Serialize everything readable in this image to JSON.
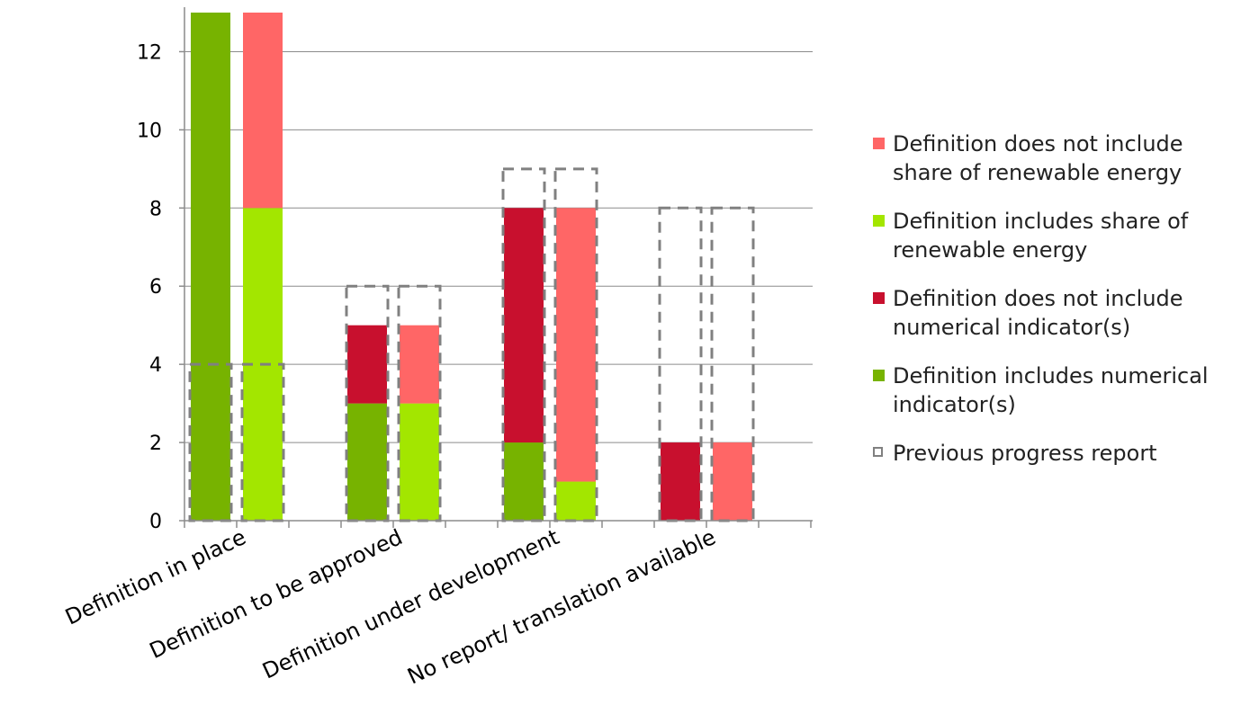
{
  "chart_data": {
    "type": "bar",
    "stacked": true,
    "categories": [
      "Definition in place",
      "Definition to be approved",
      "Definition under development",
      "No report/ translation available"
    ],
    "ylim": [
      0,
      13
    ],
    "yticks": [
      0,
      2,
      4,
      6,
      8,
      10,
      12
    ],
    "grid": true,
    "legend_position": "right",
    "groups": [
      {
        "name": "numerical indicator",
        "series": [
          {
            "name": "Definition includes numerical indicator(s)",
            "color": "#77b300",
            "values": [
              13,
              3,
              2,
              0
            ]
          },
          {
            "name": "Definition does not include numerical indicator(s)",
            "color": "#c8102e",
            "values": [
              0,
              2,
              6,
              2
            ]
          }
        ]
      },
      {
        "name": "share of renewable energy",
        "series": [
          {
            "name": "Definition includes share of renewable energy",
            "color": "#a3e600",
            "values": [
              8,
              3,
              1,
              0
            ]
          },
          {
            "name": "Definition does not include share of renewable energy",
            "color": "#ff6666",
            "values": [
              5,
              2,
              7,
              2
            ]
          }
        ]
      }
    ],
    "previous_progress_report": {
      "name": "Previous progress report",
      "style": "dashed-outline",
      "color": "#808080",
      "values": [
        4,
        6,
        9,
        8
      ]
    }
  },
  "legend": [
    {
      "label": "Definition does not include share of renewable energy",
      "color": "#ff6666",
      "style": "solid"
    },
    {
      "label": "Definition includes share of renewable energy",
      "color": "#a3e600",
      "style": "solid"
    },
    {
      "label": "Definition does not include numerical indicator(s)",
      "color": "#c8102e",
      "style": "solid"
    },
    {
      "label": "Definition includes numerical indicator(s)",
      "color": "#77b300",
      "style": "solid"
    },
    {
      "label": "Previous progress report",
      "color": "#808080",
      "style": "dashed"
    }
  ]
}
